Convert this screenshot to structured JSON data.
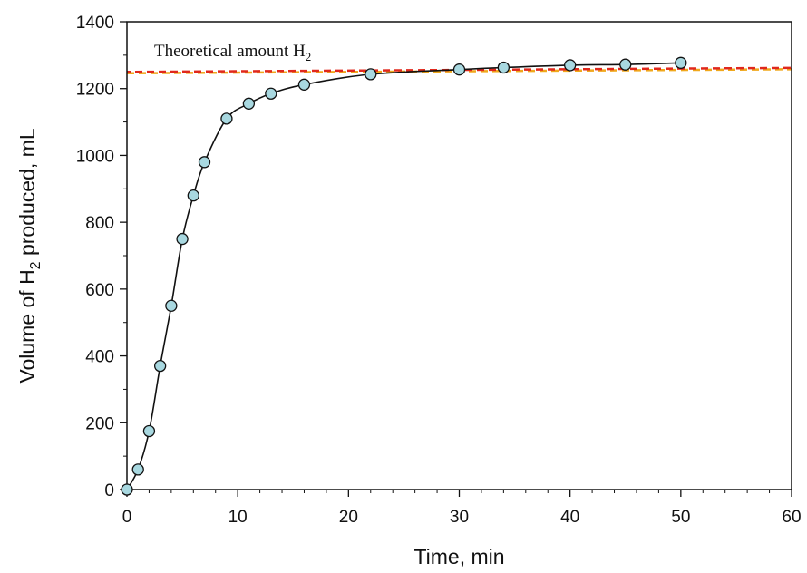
{
  "chart_data": {
    "type": "scatter",
    "title": "",
    "xlabel": "Time, min",
    "ylabel": "Volume of H2 produced, mL",
    "ylabel_parts": {
      "pre": "Volume of H",
      "sub": "2",
      "post": " produced, mL"
    },
    "xlim": [
      0,
      60
    ],
    "ylim": [
      0,
      1400
    ],
    "xticks": [
      0,
      10,
      20,
      30,
      40,
      50,
      60
    ],
    "yticks": [
      0,
      200,
      400,
      600,
      800,
      1000,
      1200,
      1400
    ],
    "grid": false,
    "series": [
      {
        "x": [
          0,
          1,
          2,
          3,
          4,
          5,
          6,
          7,
          9,
          11,
          13,
          16,
          22,
          30,
          34,
          40,
          45,
          50
        ],
        "y": [
          0,
          60,
          175,
          370,
          550,
          750,
          880,
          980,
          1110,
          1155,
          1185,
          1212,
          1243,
          1257,
          1263,
          1270,
          1272,
          1277
        ],
        "marker_color": "#a8d8e0",
        "line_color": "#111111"
      }
    ],
    "reference_lines": [
      {
        "y": 1250,
        "slope_per_min": 0.2,
        "label_pre": "Theoretical amount H",
        "label_sub": "2",
        "colors": [
          "#e0281c",
          "#f0a81c"
        ]
      }
    ]
  }
}
